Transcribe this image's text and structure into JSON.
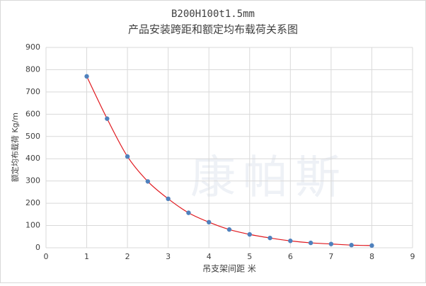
{
  "chart_data": {
    "type": "scatter",
    "title": "B200H100t1.5mm",
    "subtitle": "产品安装跨距和额定均布载荷关系图",
    "x_label": "吊支架间距 米",
    "y_label": "额定均布载荷 Kg/m",
    "watermark": "康帕斯",
    "x": [
      1,
      1.5,
      2,
      2.5,
      3,
      3.5,
      4,
      4.5,
      5,
      5.5,
      6,
      6.5,
      7,
      7.5,
      8
    ],
    "values": [
      770,
      580,
      410,
      298,
      220,
      157,
      115,
      82,
      60,
      44,
      31,
      22,
      17,
      12,
      10
    ],
    "color": "#4f81bd",
    "trendline_color": "#e0191f",
    "xlim": [
      0,
      9
    ],
    "xticks": [
      0,
      1,
      2,
      3,
      4,
      5,
      6,
      7,
      8,
      9
    ],
    "ylim": [
      0,
      900
    ],
    "yticks": [
      0,
      100,
      200,
      300,
      400,
      500,
      600,
      700,
      800,
      900
    ],
    "grid": true
  }
}
